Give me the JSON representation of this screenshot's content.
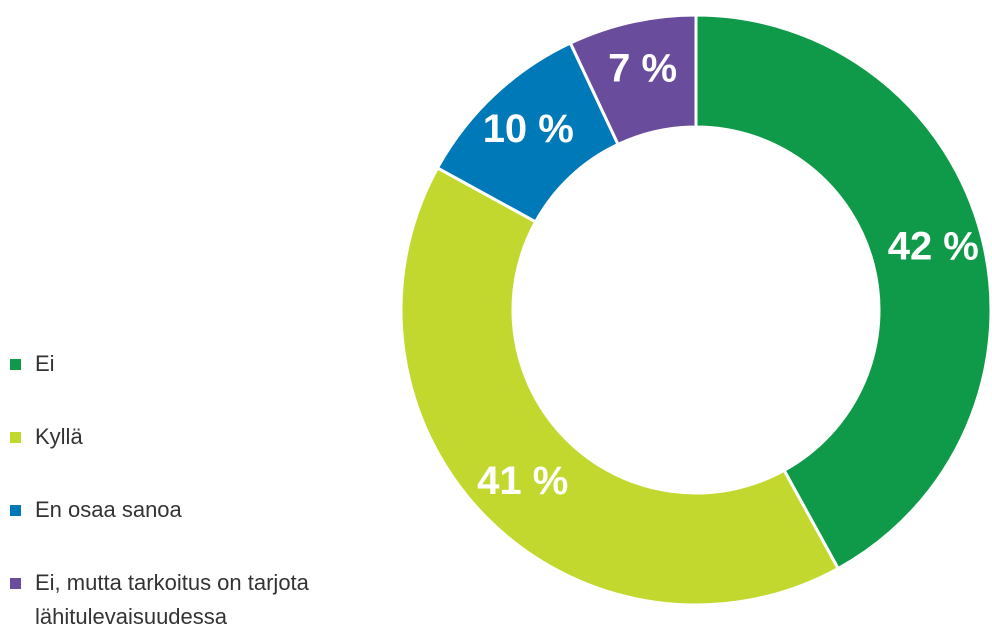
{
  "chart_data": {
    "type": "donut",
    "categories": [
      "Ei",
      "Kyllä",
      "En osaa sanoa",
      "Ei, mutta tarkoitus on tarjota lähitulevaisuudessa"
    ],
    "values": [
      42,
      41,
      10,
      7
    ],
    "value_labels": [
      "42 %",
      "41 %",
      "10 %",
      "7 %"
    ],
    "colors": [
      "#0e9a48",
      "#c3d82f",
      "#0079b9",
      "#6a4c9c"
    ]
  }
}
